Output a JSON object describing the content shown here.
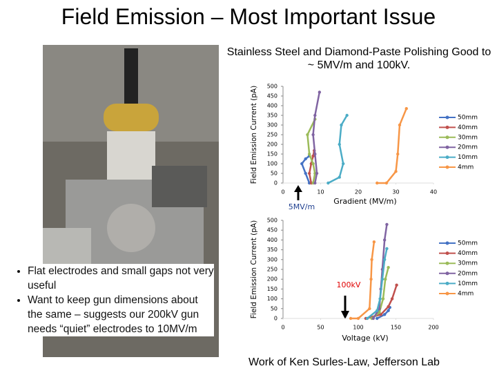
{
  "header": {
    "title": "Field Emission – Most Important Issue",
    "subtitle": "Stainless Steel and Diamond-Paste Polishing Good to ~ 5MV/m and 100kV."
  },
  "bullets": [
    "Flat electrodes and small gaps not very useful",
    "Want to keep gun dimensions about the same – suggests our 200kV gun needs “quiet” electrodes to 10MV/m"
  ],
  "credit": "Work of Ken Surles-Law, Jefferson Lab",
  "chart_data": [
    {
      "type": "line",
      "x_label": "Gradient (MV/m)",
      "y_label": "Field Emission Current (pA)",
      "annotation": "5MV/m",
      "xlim": [
        0,
        40
      ],
      "xticks": [
        0,
        10,
        20,
        30,
        40
      ],
      "ylim": [
        0,
        500
      ],
      "yticks": [
        0,
        50,
        100,
        150,
        200,
        250,
        300,
        350,
        400,
        450,
        500
      ],
      "series": [
        {
          "name": "50mm",
          "color": "#4472c4",
          "x": [
            7,
            6,
            5,
            6,
            7
          ],
          "values": [
            0,
            50,
            100,
            125,
            140
          ]
        },
        {
          "name": "40mm",
          "color": "#c0504d",
          "x": [
            7.5,
            7,
            7.5,
            8,
            8.3
          ],
          "values": [
            0,
            50,
            100,
            140,
            168
          ]
        },
        {
          "name": "30mm",
          "color": "#9bbb59",
          "x": [
            8,
            8.5,
            8,
            7,
            6.5,
            8.5
          ],
          "values": [
            0,
            50,
            100,
            150,
            250,
            330
          ]
        },
        {
          "name": "20mm",
          "color": "#8064a2",
          "x": [
            8.5,
            9,
            8.5,
            8,
            8.5,
            9.7
          ],
          "values": [
            0,
            50,
            150,
            250,
            350,
            470
          ]
        },
        {
          "name": "10mm",
          "color": "#4bacc6",
          "x": [
            12,
            15,
            16,
            15,
            15.5,
            17
          ],
          "values": [
            0,
            30,
            100,
            200,
            300,
            350
          ]
        },
        {
          "name": "4mm",
          "color": "#f79646",
          "x": [
            25,
            27.5,
            30,
            30.5,
            31,
            32.8
          ],
          "values": [
            0,
            0,
            60,
            150,
            300,
            385
          ]
        }
      ]
    },
    {
      "type": "line",
      "x_label": "Voltage (kV)",
      "y_label": "Field Emission Current (pA)",
      "annotation": "100kV",
      "xlim": [
        0,
        200
      ],
      "xticks": [
        0,
        50,
        100,
        150,
        200
      ],
      "ylim": [
        0,
        500
      ],
      "yticks": [
        0,
        50,
        100,
        150,
        200,
        250,
        300,
        350,
        400,
        450,
        500
      ],
      "series": [
        {
          "name": "50mm",
          "color": "#4472c4",
          "x": [
            125,
            135,
            140,
            142
          ],
          "values": [
            0,
            20,
            40,
            56
          ]
        },
        {
          "name": "40mm",
          "color": "#c0504d",
          "x": [
            110,
            130,
            140,
            145,
            151
          ],
          "values": [
            0,
            20,
            60,
            100,
            170
          ]
        },
        {
          "name": "30mm",
          "color": "#9bbb59",
          "x": [
            118,
            128,
            133,
            136,
            140
          ],
          "values": [
            0,
            30,
            100,
            200,
            260
          ]
        },
        {
          "name": "20mm",
          "color": "#8064a2",
          "x": [
            120,
            128,
            130,
            132,
            135,
            138
          ],
          "values": [
            0,
            50,
            150,
            250,
            400,
            479
          ]
        },
        {
          "name": "10mm",
          "color": "#4bacc6",
          "x": [
            112,
            125,
            129,
            132,
            135,
            138
          ],
          "values": [
            0,
            40,
            100,
            200,
            300,
            356
          ]
        },
        {
          "name": "4mm",
          "color": "#f79646",
          "x": [
            90,
            100,
            115,
            117,
            118,
            121
          ],
          "values": [
            0,
            0,
            50,
            200,
            300,
            390
          ]
        }
      ]
    }
  ]
}
